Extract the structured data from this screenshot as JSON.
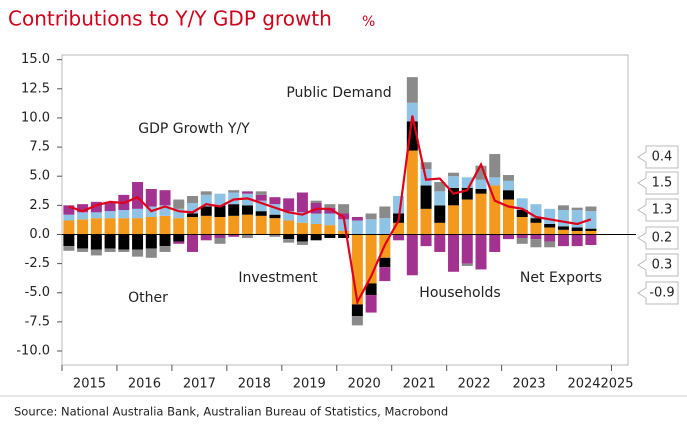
{
  "chart_data": {
    "type": "stacked_bar_line",
    "title": "Contributions to Y/Y GDP growth",
    "unit": "%",
    "source": "Source: National Australia Bank, Australian Bureau of Statistics, Macrobond",
    "x": [
      2015.125,
      2015.375,
      2015.625,
      2015.875,
      2016.125,
      2016.375,
      2016.625,
      2016.875,
      2017.125,
      2017.375,
      2017.625,
      2017.875,
      2018.125,
      2018.375,
      2018.625,
      2018.875,
      2019.125,
      2019.375,
      2019.625,
      2019.875,
      2020.125,
      2020.375,
      2020.625,
      2020.875,
      2021.125,
      2021.375,
      2021.625,
      2021.875,
      2022.125,
      2022.375,
      2022.625,
      2022.875,
      2023.125,
      2023.375,
      2023.625,
      2023.875,
      2024.125,
      2024.375,
      2024.625
    ],
    "xlim": [
      2015,
      2025.3
    ],
    "xticks": [
      2015,
      2016,
      2017,
      2018,
      2019,
      2020,
      2021,
      2022,
      2023,
      2024,
      2025
    ],
    "ylim": [
      -11.2,
      15.4
    ],
    "yticks": [
      {
        "value": -10,
        "label": "-10.0"
      },
      {
        "value": -7.5,
        "label": "-7.5"
      },
      {
        "value": -5,
        "label": "-5.0"
      },
      {
        "value": -2.5,
        "label": "-2.5"
      },
      {
        "value": 0,
        "label": "0.0"
      },
      {
        "value": 2.5,
        "label": "2.5"
      },
      {
        "value": 5,
        "label": "5.0"
      },
      {
        "value": 7.5,
        "label": "7.5"
      },
      {
        "value": 10,
        "label": "10.0"
      },
      {
        "value": 12.5,
        "label": "12.5"
      },
      {
        "value": 15,
        "label": "15.0"
      }
    ],
    "grid": false,
    "series": [
      {
        "name": "Households",
        "color": "#f39a1e",
        "kind": "bar",
        "values": [
          1.2,
          1.3,
          1.4,
          1.4,
          1.4,
          1.4,
          1.5,
          1.6,
          1.4,
          1.5,
          1.6,
          1.5,
          1.6,
          1.7,
          1.6,
          1.4,
          1.2,
          1.0,
          0.9,
          0.8,
          0.3,
          -6.0,
          -4.2,
          -2.0,
          1.0,
          7.2,
          2.2,
          1.0,
          2.5,
          3.0,
          3.5,
          4.2,
          3.0,
          1.5,
          1.0,
          0.6,
          0.4,
          0.3,
          0.3
        ]
      },
      {
        "name": "Investment",
        "color": "#000000",
        "kind": "bar",
        "values": [
          -1.0,
          -1.2,
          -1.3,
          -1.2,
          -1.3,
          -1.3,
          -1.2,
          -1.0,
          -0.6,
          0.3,
          0.8,
          1.0,
          1.0,
          0.8,
          0.4,
          0.3,
          -0.4,
          -0.6,
          -0.5,
          -0.3,
          -0.3,
          -1.0,
          -1.0,
          -0.8,
          0.8,
          2.5,
          2.0,
          1.5,
          1.5,
          1.0,
          0.4,
          0.0,
          0.8,
          0.6,
          0.4,
          0.3,
          0.3,
          0.3,
          0.2
        ]
      },
      {
        "name": "Public Demand",
        "color": "#8ec3e6",
        "kind": "bar",
        "values": [
          0.5,
          0.6,
          0.5,
          0.6,
          0.7,
          0.8,
          0.9,
          0.9,
          0.8,
          0.9,
          1.0,
          1.0,
          1.0,
          1.0,
          0.9,
          0.9,
          0.8,
          0.9,
          0.9,
          1.0,
          1.0,
          1.2,
          1.3,
          1.4,
          1.5,
          1.6,
          1.4,
          1.2,
          1.0,
          0.9,
          0.8,
          0.7,
          0.8,
          1.0,
          1.2,
          1.3,
          1.4,
          1.5,
          1.5
        ]
      },
      {
        "name": "Net Exports",
        "color": "#a3318f",
        "kind": "bar",
        "values": [
          0.8,
          0.7,
          0.9,
          0.8,
          1.3,
          2.3,
          1.5,
          1.3,
          -0.2,
          -1.5,
          -0.5,
          -0.3,
          -0.2,
          0.2,
          0.5,
          0.6,
          1.1,
          1.7,
          0.9,
          0.5,
          0.5,
          0.3,
          -1.5,
          -1.2,
          -0.5,
          -3.5,
          -1.0,
          -1.5,
          -3.2,
          -2.5,
          -3.0,
          -1.5,
          -0.4,
          -0.3,
          -0.4,
          -0.6,
          -1.0,
          -1.0,
          -0.9
        ]
      },
      {
        "name": "Other",
        "color": "#8a8a8a",
        "kind": "bar",
        "values": [
          -0.4,
          -0.3,
          -0.5,
          -0.3,
          -0.2,
          -0.6,
          -0.8,
          -0.5,
          0.8,
          0.6,
          0.3,
          -0.5,
          0.2,
          -0.3,
          0.3,
          -0.2,
          -0.3,
          -0.3,
          0.2,
          0.3,
          0.8,
          -0.8,
          0.5,
          1.0,
          0.0,
          2.2,
          0.6,
          0.8,
          0.3,
          -0.2,
          1.2,
          2.0,
          0.5,
          -0.5,
          -0.7,
          -0.5,
          0.4,
          0.2,
          0.4
        ]
      },
      {
        "name": "GDP Growth Y/Y",
        "color": "#e0001b",
        "kind": "line",
        "values": [
          2.4,
          2.0,
          2.5,
          2.8,
          2.7,
          3.2,
          2.0,
          2.4,
          2.0,
          1.9,
          2.6,
          2.4,
          3.0,
          3.1,
          2.7,
          2.3,
          1.9,
          1.7,
          2.2,
          2.2,
          1.5,
          -5.8,
          -3.6,
          -0.9,
          1.2,
          10.2,
          4.7,
          4.8,
          3.5,
          3.8,
          6.0,
          2.9,
          2.4,
          2.2,
          1.5,
          1.3,
          1.1,
          0.9,
          1.3
        ]
      }
    ]
  }
}
